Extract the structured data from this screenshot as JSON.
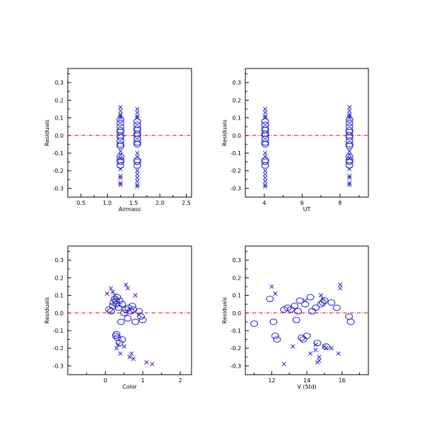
{
  "chart_data": [
    {
      "type": "scatter",
      "xlabel": "Airmass",
      "ylabel": "Residuals",
      "xlim": [
        0.25,
        2.6
      ],
      "ylim": [
        -0.35,
        0.38
      ],
      "xticks": [
        "0.5",
        "1.0",
        "1.5",
        "2.0",
        "2.5"
      ],
      "xtick_values": [
        0.5,
        1.0,
        1.5,
        2.0,
        2.5
      ],
      "yticks": [
        "0.3",
        "0.2",
        "0.1",
        "0.0",
        "-0.1",
        "-0.2",
        "-0.3"
      ],
      "ytick_values": [
        0.3,
        0.2,
        0.1,
        0.0,
        -0.1,
        -0.2,
        -0.3
      ],
      "reference_line": 0.0,
      "series": [
        {
          "marker": "circle",
          "color": "#2222cc",
          "points": [
            [
              1.25,
              0.09
            ],
            [
              1.25,
              0.07
            ],
            [
              1.25,
              0.05
            ],
            [
              1.25,
              0.03
            ],
            [
              1.25,
              0.02
            ],
            [
              1.25,
              0.0
            ],
            [
              1.25,
              -0.01
            ],
            [
              1.25,
              -0.03
            ],
            [
              1.25,
              -0.05
            ],
            [
              1.25,
              -0.06
            ],
            [
              1.25,
              -0.12
            ],
            [
              1.25,
              -0.14
            ],
            [
              1.25,
              -0.15
            ],
            [
              1.25,
              -0.17
            ],
            [
              1.57,
              0.08
            ],
            [
              1.57,
              0.06
            ],
            [
              1.57,
              0.04
            ],
            [
              1.57,
              0.03
            ],
            [
              1.57,
              0.01
            ],
            [
              1.57,
              0.0
            ],
            [
              1.57,
              -0.02
            ],
            [
              1.57,
              -0.04
            ],
            [
              1.57,
              -0.05
            ],
            [
              1.57,
              -0.14
            ],
            [
              1.57,
              -0.15
            ],
            [
              1.57,
              -0.17
            ]
          ]
        },
        {
          "marker": "cross",
          "color": "#2222cc",
          "points": [
            [
              1.25,
              0.16
            ],
            [
              1.25,
              0.14
            ],
            [
              1.25,
              0.12
            ],
            [
              1.25,
              0.11
            ],
            [
              1.25,
              0.1
            ],
            [
              1.25,
              -0.09
            ],
            [
              1.25,
              -0.11
            ],
            [
              1.25,
              -0.13
            ],
            [
              1.25,
              -0.19
            ],
            [
              1.25,
              -0.23
            ],
            [
              1.25,
              -0.24
            ],
            [
              1.25,
              -0.27
            ],
            [
              1.25,
              -0.28
            ],
            [
              1.57,
              0.15
            ],
            [
              1.57,
              0.13
            ],
            [
              1.57,
              0.11
            ],
            [
              1.57,
              0.1
            ],
            [
              1.57,
              -0.1
            ],
            [
              1.57,
              -0.12
            ],
            [
              1.57,
              -0.2
            ],
            [
              1.57,
              -0.22
            ],
            [
              1.57,
              -0.24
            ],
            [
              1.57,
              -0.26
            ],
            [
              1.57,
              -0.28
            ],
            [
              1.57,
              -0.29
            ]
          ]
        }
      ]
    },
    {
      "type": "scatter",
      "xlabel": "UT",
      "ylabel": "Residuals",
      "xlim": [
        3.0,
        9.5
      ],
      "ylim": [
        -0.35,
        0.38
      ],
      "xticks": [
        "4",
        "6",
        "8"
      ],
      "xtick_values": [
        4,
        6,
        8
      ],
      "yticks": [
        "0.3",
        "0.2",
        "0.1",
        "0.0",
        "-0.1",
        "-0.2",
        "-0.3"
      ],
      "ytick_values": [
        0.3,
        0.2,
        0.1,
        0.0,
        -0.1,
        -0.2,
        -0.3
      ],
      "reference_line": 0.0,
      "series": [
        {
          "marker": "circle",
          "color": "#2222cc",
          "points": [
            [
              4.05,
              0.08
            ],
            [
              4.05,
              0.06
            ],
            [
              4.05,
              0.04
            ],
            [
              4.05,
              0.03
            ],
            [
              4.05,
              0.01
            ],
            [
              4.05,
              0.0
            ],
            [
              4.05,
              -0.02
            ],
            [
              4.05,
              -0.04
            ],
            [
              4.05,
              -0.05
            ],
            [
              4.05,
              -0.14
            ],
            [
              4.05,
              -0.15
            ],
            [
              4.05,
              -0.17
            ],
            [
              8.5,
              0.09
            ],
            [
              8.5,
              0.07
            ],
            [
              8.5,
              0.05
            ],
            [
              8.5,
              0.03
            ],
            [
              8.5,
              0.02
            ],
            [
              8.5,
              0.0
            ],
            [
              8.5,
              -0.01
            ],
            [
              8.5,
              -0.03
            ],
            [
              8.5,
              -0.05
            ],
            [
              8.5,
              -0.06
            ],
            [
              8.5,
              -0.12
            ],
            [
              8.5,
              -0.14
            ],
            [
              8.5,
              -0.15
            ],
            [
              8.5,
              -0.17
            ]
          ]
        },
        {
          "marker": "cross",
          "color": "#2222cc",
          "points": [
            [
              4.05,
              0.15
            ],
            [
              4.05,
              0.13
            ],
            [
              4.05,
              0.11
            ],
            [
              4.05,
              0.1
            ],
            [
              4.05,
              -0.1
            ],
            [
              4.05,
              -0.12
            ],
            [
              4.05,
              -0.2
            ],
            [
              4.05,
              -0.22
            ],
            [
              4.05,
              -0.24
            ],
            [
              4.05,
              -0.26
            ],
            [
              4.05,
              -0.28
            ],
            [
              4.05,
              -0.29
            ],
            [
              8.5,
              0.16
            ],
            [
              8.5,
              0.14
            ],
            [
              8.5,
              0.12
            ],
            [
              8.5,
              0.11
            ],
            [
              8.5,
              0.1
            ],
            [
              8.5,
              -0.09
            ],
            [
              8.5,
              -0.11
            ],
            [
              8.5,
              -0.13
            ],
            [
              8.5,
              -0.19
            ],
            [
              8.5,
              -0.23
            ],
            [
              8.5,
              -0.24
            ],
            [
              8.5,
              -0.27
            ],
            [
              8.5,
              -0.28
            ]
          ]
        }
      ]
    },
    {
      "type": "scatter",
      "xlabel": "Color",
      "ylabel": "Residuals",
      "xlim": [
        -1.0,
        2.3
      ],
      "ylim": [
        -0.35,
        0.38
      ],
      "xticks": [
        "0",
        "1",
        "2"
      ],
      "xtick_values": [
        0,
        1,
        2
      ],
      "yticks": [
        "0.3",
        "0.2",
        "0.1",
        "0.0",
        "-0.1",
        "-0.2",
        "-0.3"
      ],
      "ytick_values": [
        0.3,
        0.2,
        0.1,
        0.0,
        -0.1,
        -0.2,
        -0.3
      ],
      "reference_line": 0.0,
      "series": [
        {
          "marker": "circle",
          "color": "#2222cc",
          "points": [
            [
              0.1,
              0.02
            ],
            [
              0.15,
              0.01
            ],
            [
              0.2,
              0.04
            ],
            [
              0.22,
              0.06
            ],
            [
              0.25,
              0.08
            ],
            [
              0.28,
              0.07
            ],
            [
              0.3,
              0.05
            ],
            [
              0.32,
              0.09
            ],
            [
              0.35,
              0.03
            ],
            [
              0.38,
              0.07
            ],
            [
              0.45,
              0.05
            ],
            [
              0.5,
              0.0
            ],
            [
              0.55,
              0.02
            ],
            [
              0.62,
              0.03
            ],
            [
              0.68,
              0.01
            ],
            [
              0.72,
              0.04
            ],
            [
              0.75,
              0.02
            ],
            [
              0.9,
              0.01
            ],
            [
              0.95,
              -0.02
            ],
            [
              1.0,
              -0.04
            ],
            [
              0.8,
              -0.05
            ],
            [
              0.6,
              -0.03
            ],
            [
              0.42,
              -0.05
            ],
            [
              0.28,
              -0.13
            ],
            [
              0.32,
              -0.14
            ],
            [
              0.38,
              -0.17
            ],
            [
              0.45,
              -0.15
            ],
            [
              0.3,
              -0.12
            ]
          ]
        },
        {
          "marker": "cross",
          "color": "#2222cc",
          "points": [
            [
              0.05,
              0.11
            ],
            [
              0.15,
              0.14
            ],
            [
              0.2,
              0.12
            ],
            [
              0.25,
              0.1
            ],
            [
              0.3,
              -0.2
            ],
            [
              0.35,
              -0.18
            ],
            [
              0.4,
              -0.23
            ],
            [
              0.5,
              -0.19
            ],
            [
              0.55,
              0.16
            ],
            [
              0.6,
              0.14
            ],
            [
              0.65,
              -0.25
            ],
            [
              0.7,
              -0.23
            ],
            [
              0.75,
              -0.26
            ],
            [
              0.8,
              0.1
            ],
            [
              1.1,
              -0.28
            ],
            [
              1.25,
              -0.29
            ],
            [
              0.9,
              -0.01
            ]
          ]
        }
      ]
    },
    {
      "type": "scatter",
      "xlabel": "V (Std)",
      "ylabel": "Residuals",
      "xlim": [
        10.5,
        17.5
      ],
      "ylim": [
        -0.35,
        0.38
      ],
      "xticks": [
        "12",
        "14",
        "16"
      ],
      "xtick_values": [
        12,
        14,
        16
      ],
      "yticks": [
        "0.3",
        "0.2",
        "0.1",
        "0.0",
        "-0.1",
        "-0.2",
        "-0.3"
      ],
      "ytick_values": [
        0.3,
        0.2,
        0.1,
        0.0,
        -0.1,
        -0.2,
        -0.3
      ],
      "reference_line": 0.0,
      "series": [
        {
          "marker": "circle",
          "color": "#2222cc",
          "points": [
            [
              11.0,
              -0.06
            ],
            [
              11.9,
              0.08
            ],
            [
              12.1,
              -0.05
            ],
            [
              12.2,
              -0.13
            ],
            [
              12.3,
              -0.15
            ],
            [
              12.7,
              0.02
            ],
            [
              12.9,
              0.03
            ],
            [
              13.1,
              0.02
            ],
            [
              13.3,
              0.04
            ],
            [
              13.4,
              -0.04
            ],
            [
              13.6,
              0.07
            ],
            [
              13.7,
              -0.14
            ],
            [
              13.8,
              -0.15
            ],
            [
              13.9,
              0.05
            ],
            [
              14.0,
              -0.13
            ],
            [
              14.2,
              0.09
            ],
            [
              14.3,
              0.01
            ],
            [
              14.5,
              0.03
            ],
            [
              14.6,
              -0.17
            ],
            [
              14.8,
              0.05
            ],
            [
              14.9,
              0.06
            ],
            [
              15.0,
              0.07
            ],
            [
              15.1,
              -0.19
            ],
            [
              15.4,
              0.06
            ],
            [
              15.7,
              0.03
            ],
            [
              16.4,
              -0.02
            ],
            [
              16.5,
              -0.05
            ],
            [
              13.5,
              0.01
            ]
          ]
        },
        {
          "marker": "cross",
          "color": "#2222cc",
          "points": [
            [
              12.0,
              0.15
            ],
            [
              12.2,
              0.11
            ],
            [
              12.7,
              -0.29
            ],
            [
              13.2,
              -0.19
            ],
            [
              13.9,
              0.07
            ],
            [
              14.2,
              -0.23
            ],
            [
              14.5,
              -0.21
            ],
            [
              14.7,
              -0.25
            ],
            [
              14.7,
              -0.27
            ],
            [
              14.8,
              0.1
            ],
            [
              14.9,
              0.08
            ],
            [
              15.0,
              -0.19
            ],
            [
              15.1,
              -0.2
            ],
            [
              15.4,
              -0.2
            ],
            [
              15.8,
              -0.23
            ],
            [
              15.9,
              0.16
            ],
            [
              15.9,
              0.14
            ],
            [
              14.6,
              -0.28
            ],
            [
              14.5,
              -0.18
            ]
          ]
        }
      ]
    }
  ]
}
